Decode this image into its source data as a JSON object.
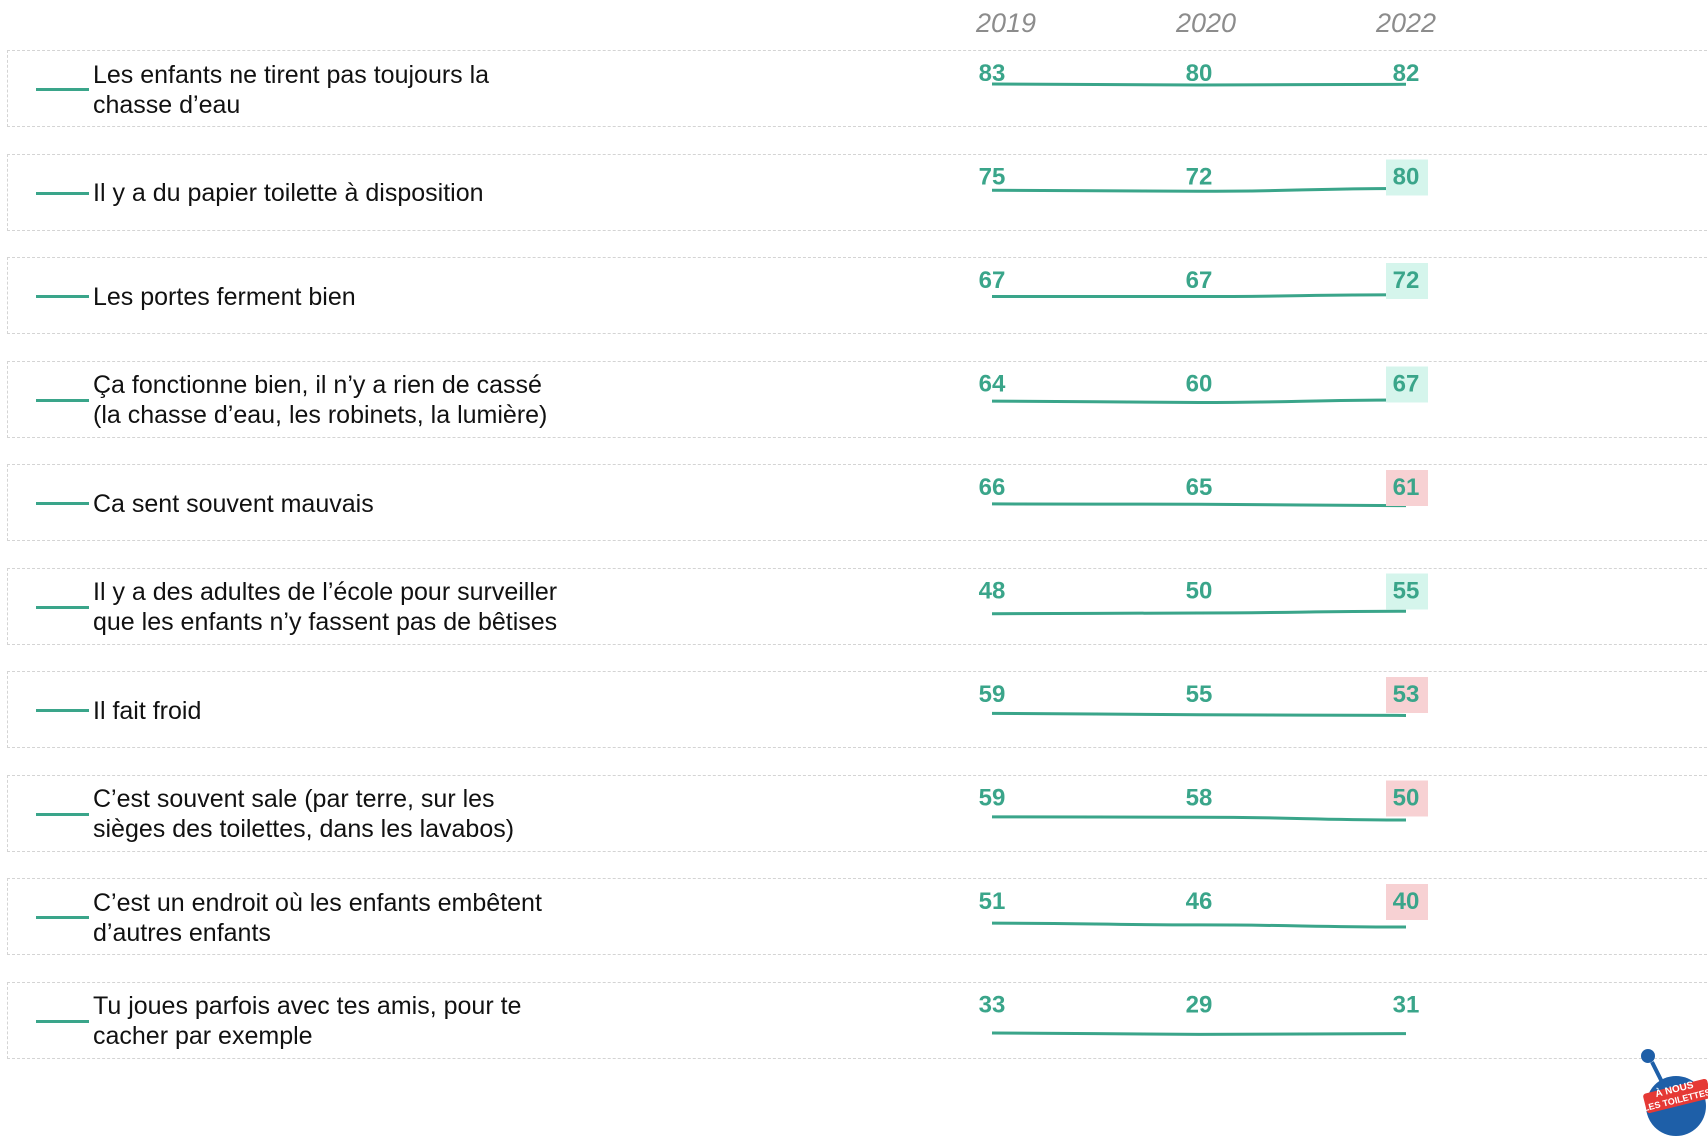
{
  "chart_data": {
    "type": "line",
    "x": [
      "2019",
      "2020",
      "2022"
    ],
    "rows": [
      {
        "label": "Les enfants ne tirent pas toujours la\nchasse d’eau",
        "values": [
          83,
          80,
          82
        ],
        "highlight": "none"
      },
      {
        "label": "Il y a du papier toilette à disposition",
        "values": [
          75,
          72,
          80
        ],
        "highlight": "up"
      },
      {
        "label": "Les portes ferment bien",
        "values": [
          67,
          67,
          72
        ],
        "highlight": "up"
      },
      {
        "label": "Ça fonctionne bien, il n’y a rien de cassé\n(la chasse d’eau, les robinets, la lumière)",
        "values": [
          64,
          60,
          67
        ],
        "highlight": "up"
      },
      {
        "label": "Ca sent souvent mauvais",
        "values": [
          66,
          65,
          61
        ],
        "highlight": "down"
      },
      {
        "label": "Il y a des adultes de l’école pour surveiller\nque les enfants n’y fassent pas de bêtises",
        "values": [
          48,
          50,
          55
        ],
        "highlight": "up"
      },
      {
        "label": "Il fait froid",
        "values": [
          59,
          55,
          53
        ],
        "highlight": "down"
      },
      {
        "label": "C’est souvent sale (par terre, sur les\nsièges des toilettes, dans les lavabos)",
        "values": [
          59,
          58,
          50
        ],
        "highlight": "down"
      },
      {
        "label": "C’est un endroit où les enfants embêtent\nd’autres enfants",
        "values": [
          51,
          46,
          40
        ],
        "highlight": "down"
      },
      {
        "label": "Tu joues parfois avec tes amis, pour te\ncacher par exemple",
        "values": [
          33,
          29,
          31
        ],
        "highlight": "none"
      }
    ]
  },
  "colors": {
    "line": "#3aa58a",
    "value_text": "#3aa58a",
    "highlight_up": "#d5f5ec",
    "highlight_down": "#f7d1d3",
    "year_text": "#8c8c8c"
  },
  "logo": {
    "text_line1": "À NOUS",
    "text_line2": "LES TOILETTES",
    "icon": "toilet-brush-mascot-icon"
  }
}
